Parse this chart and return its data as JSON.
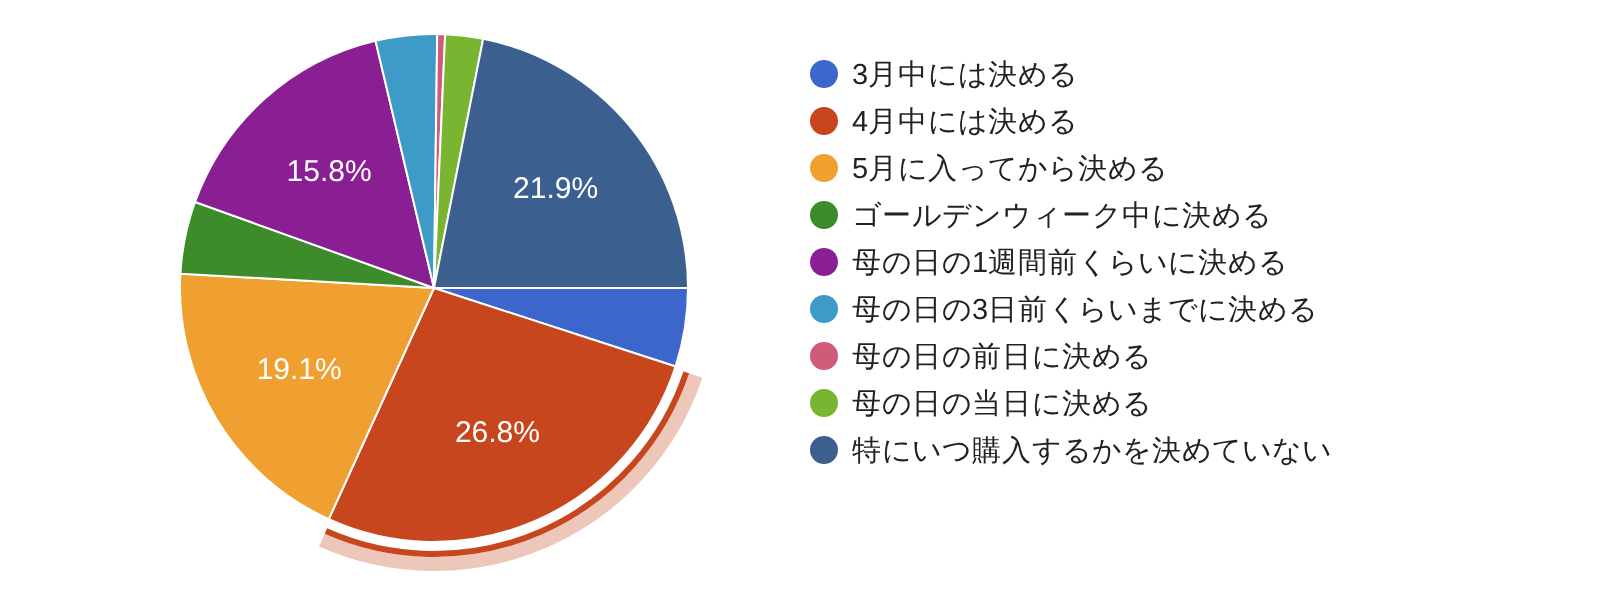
{
  "chart_data": {
    "type": "pie",
    "categories": [
      "3月中には決める",
      "4月中には決める",
      "5月に入ってから決める",
      "ゴールデンウィーク中に決める",
      "母の日の1週間前くらいに決める",
      "母の日の3日前くらいまでに決める",
      "母の日の前日に決める",
      "母の日の当日に決める",
      "特にいつ購入するかを決めていない"
    ],
    "values": [
      5.0,
      26.8,
      19.1,
      4.6,
      15.8,
      3.9,
      0.5,
      2.4,
      21.9
    ],
    "colors": [
      "#3d66cc",
      "#c8461e",
      "#f0a030",
      "#3c8c2c",
      "#8a1f94",
      "#3e9bc8",
      "#d05a7a",
      "#79b530",
      "#3b5f8f"
    ],
    "value_labels": [
      null,
      "26.8%",
      "19.1%",
      null,
      "15.8%",
      null,
      null,
      null,
      "21.9%"
    ],
    "legend": "right"
  }
}
